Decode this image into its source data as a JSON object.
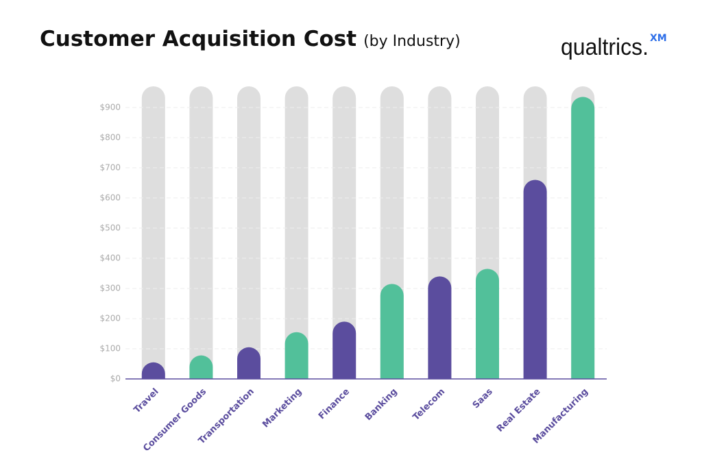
{
  "chart_data": {
    "type": "bar",
    "title": "Customer Acquisition Cost",
    "subtitle": "(by Industry)",
    "logo": "qualtrics.",
    "logo_badge": "XM",
    "categories": [
      "Travel",
      "Consumer Goods",
      "Transportation",
      "Marketing",
      "Finance",
      "Banking",
      "Telecom",
      "Saas",
      "Real Estate",
      "Manufacturing"
    ],
    "values": [
      55,
      78,
      105,
      155,
      190,
      315,
      340,
      365,
      660,
      935
    ],
    "colors": [
      "#5b4d9e",
      "#52c09a",
      "#5b4d9e",
      "#52c09a",
      "#5b4d9e",
      "#52c09a",
      "#5b4d9e",
      "#52c09a",
      "#5b4d9e",
      "#52c09a"
    ],
    "ylim": [
      0,
      970
    ],
    "yticks": [
      {
        "value": 0,
        "label": "$0"
      },
      {
        "value": 100,
        "label": "$100"
      },
      {
        "value": 200,
        "label": "$200"
      },
      {
        "value": 300,
        "label": "$300"
      },
      {
        "value": 400,
        "label": "$400"
      },
      {
        "value": 500,
        "label": "$500"
      },
      {
        "value": 600,
        "label": "$600"
      },
      {
        "value": 700,
        "label": "$700"
      },
      {
        "value": 800,
        "label": "$800"
      },
      {
        "value": 900,
        "label": "$900"
      }
    ],
    "grid": true
  }
}
